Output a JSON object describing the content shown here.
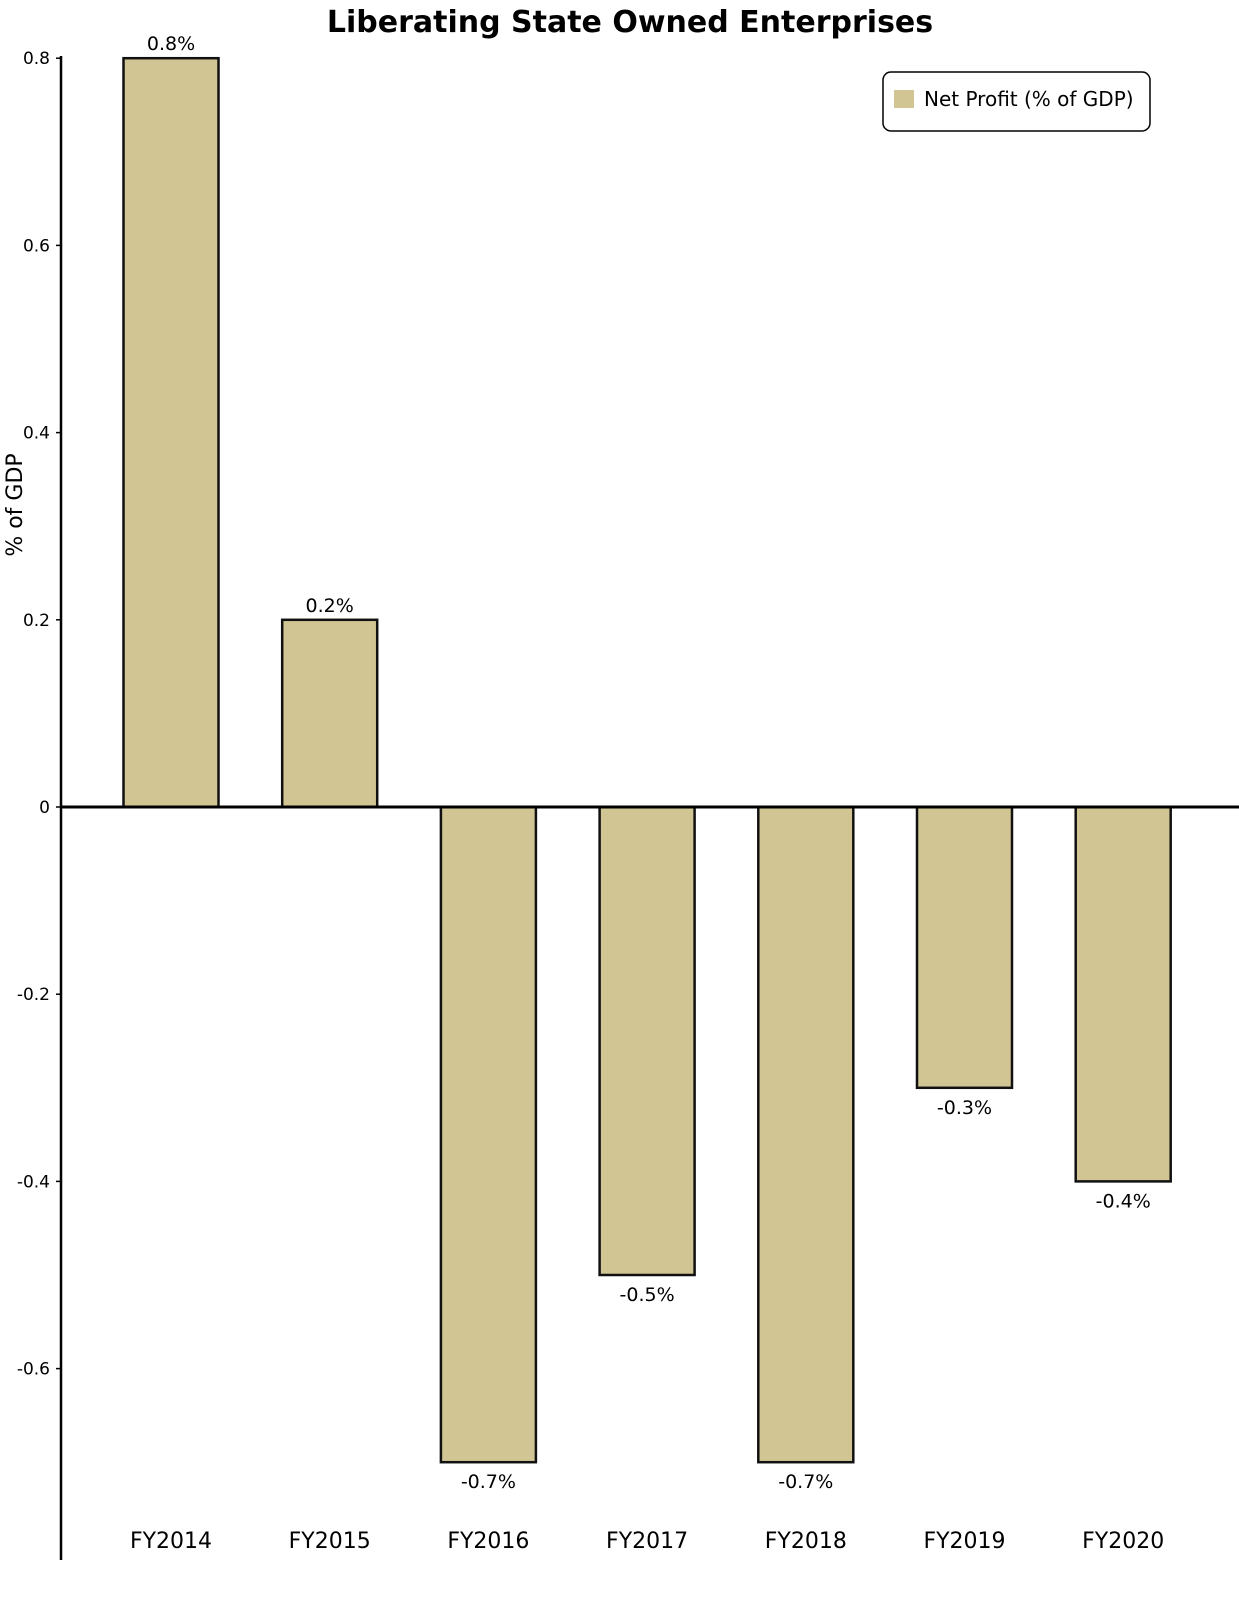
{
  "chart_data": {
    "type": "bar",
    "title": "Liberating State Owned Enterprises",
    "xlabel": "",
    "ylabel": "% of GDP",
    "categories": [
      "FY2014",
      "FY2015",
      "FY2016",
      "FY2017",
      "FY2018",
      "FY2019",
      "FY2020"
    ],
    "series": [
      {
        "name": "Net Profit (% of GDP)",
        "values": [
          0.8,
          0.2,
          -0.7,
          -0.5,
          -0.7,
          -0.3,
          -0.4
        ],
        "labels": [
          "0.8%",
          "0.2%",
          "-0.7%",
          "-0.5%",
          "-0.7%",
          "-0.3%",
          "-0.4%"
        ]
      }
    ],
    "yticks": [
      {
        "value": 0.8,
        "label": "0.8"
      },
      {
        "value": 0.6,
        "label": "0.6"
      },
      {
        "value": 0.4,
        "label": "0.4"
      },
      {
        "value": 0.2,
        "label": "0.2"
      },
      {
        "value": 0,
        "label": "0"
      },
      {
        "value": -0.2,
        "label": "-0.2"
      },
      {
        "value": -0.4,
        "label": "-0.4"
      },
      {
        "value": -0.6,
        "label": "-0.6"
      }
    ],
    "ylim": [
      -0.8,
      0.8
    ],
    "grid": false,
    "legend_position": "top-right",
    "colors": {
      "bar_fill": "#d1c594",
      "bar_stroke": "#111111",
      "axis": "#000000"
    }
  }
}
